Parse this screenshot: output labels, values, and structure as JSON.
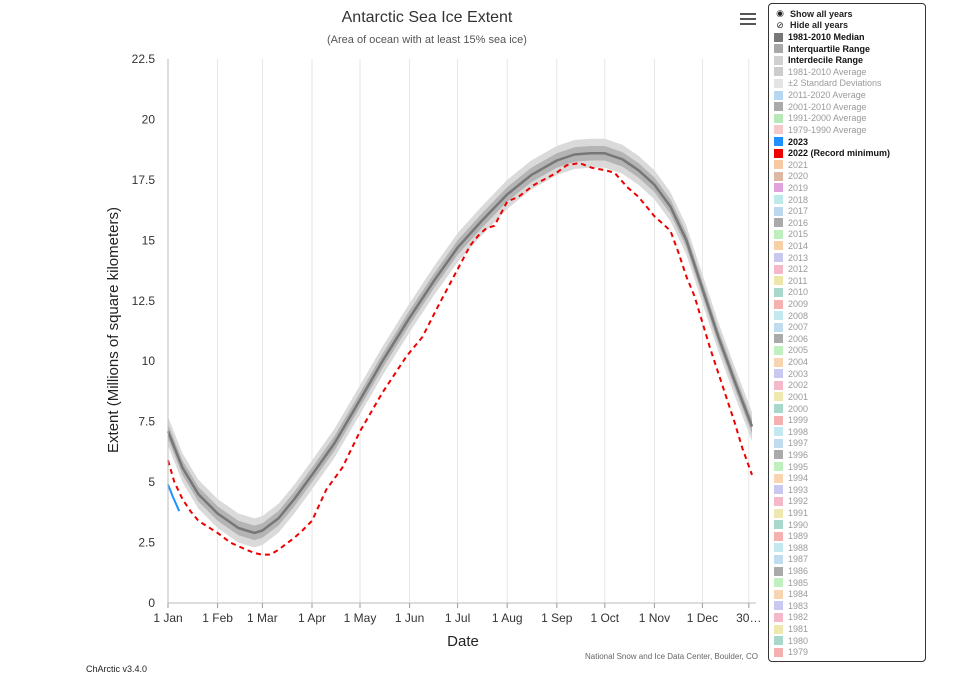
{
  "chart_data": {
    "type": "line",
    "title": "Antarctic Sea Ice Extent",
    "subtitle": "(Area of ocean with at least 15% sea ice)",
    "xlabel": "Date",
    "ylabel": "Extent (Millions of square kilometers)",
    "ylim": [
      0,
      22.5
    ],
    "yticks": [
      "0",
      "2.5",
      "5",
      "7.5",
      "10",
      "12.5",
      "15",
      "17.5",
      "20",
      "22.5"
    ],
    "xlim": [
      1,
      366
    ],
    "xticks": [
      {
        "day": 1,
        "label": "1 Jan"
      },
      {
        "day": 32,
        "label": "1 Feb"
      },
      {
        "day": 60,
        "label": "1 Mar"
      },
      {
        "day": 91,
        "label": "1 Apr"
      },
      {
        "day": 121,
        "label": "1 May"
      },
      {
        "day": 152,
        "label": "1 Jun"
      },
      {
        "day": 182,
        "label": "1 Jul"
      },
      {
        "day": 213,
        "label": "1 Aug"
      },
      {
        "day": 244,
        "label": "1 Sep"
      },
      {
        "day": 274,
        "label": "1 Oct"
      },
      {
        "day": 305,
        "label": "1 Nov"
      },
      {
        "day": 335,
        "label": "1 Dec"
      },
      {
        "day": 364,
        "label": "30…"
      }
    ],
    "grid": "vertical",
    "legend_position": "right",
    "series": [
      {
        "name": "1981-2010 Median",
        "color": "#777777",
        "x": [
          1,
          10,
          20,
          32,
          45,
          55,
          60,
          70,
          80,
          91,
          105,
          121,
          135,
          152,
          167,
          182,
          197,
          213,
          228,
          244,
          255,
          265,
          274,
          285,
          295,
          305,
          315,
          325,
          335,
          345,
          355,
          366
        ],
        "y": [
          7.1,
          5.6,
          4.5,
          3.7,
          3.1,
          2.9,
          3.0,
          3.5,
          4.3,
          5.3,
          6.6,
          8.4,
          10.0,
          11.8,
          13.3,
          14.7,
          15.8,
          16.9,
          17.7,
          18.3,
          18.55,
          18.6,
          18.6,
          18.35,
          17.9,
          17.3,
          16.4,
          15.0,
          13.0,
          11.0,
          9.2,
          7.3
        ],
        "band_iqr": 0.3,
        "band_idr": 0.6
      },
      {
        "name": "2022 (Record minimum)",
        "color": "#ee0000",
        "style": "dashed",
        "x": [
          1,
          5,
          10,
          15,
          20,
          32,
          40,
          50,
          56,
          60,
          65,
          70,
          80,
          85,
          91,
          100,
          110,
          121,
          135,
          150,
          160,
          170,
          182,
          190,
          195,
          200,
          205,
          213,
          220,
          230,
          244,
          250,
          258,
          266,
          274,
          280,
          288,
          295,
          305,
          315,
          320,
          325,
          330,
          340,
          345,
          350,
          355,
          360,
          366
        ],
        "y": [
          5.9,
          5.0,
          4.3,
          3.8,
          3.4,
          2.9,
          2.5,
          2.2,
          2.05,
          2.0,
          2.0,
          2.2,
          2.7,
          3.0,
          3.4,
          4.7,
          5.6,
          7.1,
          8.7,
          10.2,
          11.0,
          12.3,
          13.8,
          14.8,
          15.2,
          15.5,
          15.6,
          16.6,
          16.8,
          17.3,
          17.8,
          18.1,
          18.2,
          18.0,
          17.9,
          17.8,
          17.2,
          16.8,
          16.0,
          15.4,
          14.5,
          13.5,
          12.7,
          10.5,
          9.5,
          8.5,
          7.5,
          6.4,
          5.3
        ]
      },
      {
        "name": "2023",
        "color": "#1e90ff",
        "x": [
          1,
          4,
          8
        ],
        "y": [
          4.9,
          4.4,
          3.8
        ]
      }
    ],
    "credit": "National Snow and Ice Data Center, Boulder, CO"
  },
  "legend": {
    "controls": [
      {
        "label": "Show all years",
        "icon": "eye-icon"
      },
      {
        "label": "Hide all years",
        "icon": "eye-slash-icon"
      }
    ],
    "items": [
      {
        "label": "1981-2010 Median",
        "color": "#777777",
        "active": true
      },
      {
        "label": "Interquartile Range",
        "color": "#a8a8a8",
        "active": true
      },
      {
        "label": "Interdecile Range",
        "color": "#d0d0d0",
        "active": true
      },
      {
        "label": "1981-2010 Average",
        "color": "#cccccc",
        "active": false
      },
      {
        "label": "±2 Standard Deviations",
        "color": "#e3e3e3",
        "active": false
      },
      {
        "label": "2011-2020 Average",
        "color": "#b6d6f2",
        "active": false
      },
      {
        "label": "2001-2010 Average",
        "color": "#aaaaaa",
        "active": false
      },
      {
        "label": "1991-2000 Average",
        "color": "#b8e8b8",
        "active": false
      },
      {
        "label": "1979-1990 Average",
        "color": "#f5c9c9",
        "active": false
      },
      {
        "label": "2023",
        "color": "#1e90ff",
        "active": true
      },
      {
        "label": "2022 (Record minimum)",
        "color": "#ee0000",
        "active": true
      },
      {
        "label": "2021",
        "color": "#f7c9a3",
        "active": false
      },
      {
        "label": "2020",
        "color": "#ddb8a3",
        "active": false
      },
      {
        "label": "2019",
        "color": "#e0a2dd",
        "active": false
      },
      {
        "label": "2018",
        "color": "#bfeaea",
        "active": false
      },
      {
        "label": "2017",
        "color": "#bbd8ee",
        "active": false
      },
      {
        "label": "2016",
        "color": "#aaaaaa",
        "active": false
      },
      {
        "label": "2015",
        "color": "#bdeebd",
        "active": false
      },
      {
        "label": "2014",
        "color": "#f8d0a8",
        "active": false
      },
      {
        "label": "2013",
        "color": "#c8c8ee",
        "active": false
      },
      {
        "label": "2012",
        "color": "#f5b8c8",
        "active": false
      },
      {
        "label": "2011",
        "color": "#eee6a8",
        "active": false
      },
      {
        "label": "2010",
        "color": "#a8d8cc",
        "active": false
      },
      {
        "label": "2009",
        "color": "#f5b0b0",
        "active": false
      },
      {
        "label": "2008",
        "color": "#c4e8f0",
        "active": false
      },
      {
        "label": "2007",
        "color": "#c0dcee",
        "active": false
      },
      {
        "label": "2006",
        "color": "#aaaaaa",
        "active": false
      },
      {
        "label": "2005",
        "color": "#c0f0c0",
        "active": false
      },
      {
        "label": "2004",
        "color": "#f8d4b0",
        "active": false
      },
      {
        "label": "2003",
        "color": "#c8c8f0",
        "active": false
      },
      {
        "label": "2002",
        "color": "#f5b8c8",
        "active": false
      },
      {
        "label": "2001",
        "color": "#eee8b0",
        "active": false
      },
      {
        "label": "2000",
        "color": "#a8d8cc",
        "active": false
      },
      {
        "label": "1999",
        "color": "#f5b0b0",
        "active": false
      },
      {
        "label": "1998",
        "color": "#c4e8f0",
        "active": false
      },
      {
        "label": "1997",
        "color": "#c0dcee",
        "active": false
      },
      {
        "label": "1996",
        "color": "#aaaaaa",
        "active": false
      },
      {
        "label": "1995",
        "color": "#c0f0c0",
        "active": false
      },
      {
        "label": "1994",
        "color": "#f8d4b0",
        "active": false
      },
      {
        "label": "1993",
        "color": "#c8c8f0",
        "active": false
      },
      {
        "label": "1992",
        "color": "#f5b8c8",
        "active": false
      },
      {
        "label": "1991",
        "color": "#eee8b0",
        "active": false
      },
      {
        "label": "1990",
        "color": "#a8d8cc",
        "active": false
      },
      {
        "label": "1989",
        "color": "#f5b0b0",
        "active": false
      },
      {
        "label": "1988",
        "color": "#c4e8f0",
        "active": false
      },
      {
        "label": "1987",
        "color": "#c0dcee",
        "active": false
      },
      {
        "label": "1986",
        "color": "#aaaaaa",
        "active": false
      },
      {
        "label": "1985",
        "color": "#c0f0c0",
        "active": false
      },
      {
        "label": "1984",
        "color": "#f8d4b0",
        "active": false
      },
      {
        "label": "1983",
        "color": "#c8c8f0",
        "active": false
      },
      {
        "label": "1982",
        "color": "#f5b8c8",
        "active": false
      },
      {
        "label": "1981",
        "color": "#eee8b0",
        "active": false
      },
      {
        "label": "1980",
        "color": "#a8d8cc",
        "active": false
      },
      {
        "label": "1979",
        "color": "#f5b0b0",
        "active": false
      }
    ]
  },
  "footer": {
    "version": "ChArctic v3.4.0"
  },
  "toolbar": {
    "menu_icon": "hamburger-menu-icon"
  }
}
